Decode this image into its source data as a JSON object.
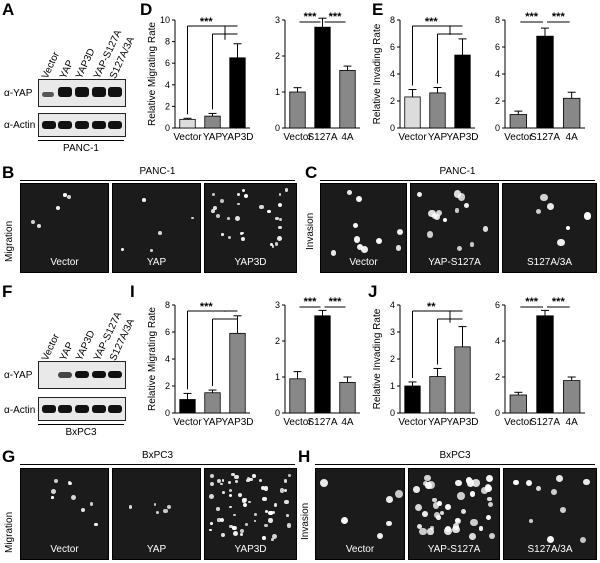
{
  "panels": {
    "A": {
      "letter": "A",
      "lanes": [
        "Vector",
        "YAP",
        "YAP3D",
        "YAP-S127A",
        "S127A/3A"
      ],
      "rows": [
        "α-YAP",
        "α-Actin"
      ],
      "cell": "PANC-1"
    },
    "F": {
      "letter": "F",
      "lanes": [
        "Vector",
        "YAP",
        "YAP3D",
        "YAP-S127A",
        "S127A/3A"
      ],
      "rows": [
        "α-YAP",
        "α-Actin"
      ],
      "cell": "BxPC3"
    },
    "B": {
      "letter": "B",
      "header": "PANC-1",
      "side": "Migration",
      "images": [
        "Vector",
        "YAP",
        "YAP3D"
      ]
    },
    "C": {
      "letter": "C",
      "header": "PANC-1",
      "side": "Invasion",
      "images": [
        "Vector",
        "YAP-S127A",
        "S127A/3A"
      ]
    },
    "G": {
      "letter": "G",
      "header": "BxPC3",
      "side": "Migration",
      "images": [
        "Vector",
        "YAP",
        "YAP3D"
      ]
    },
    "H": {
      "letter": "H",
      "header": "BxPC3",
      "side": "Invasion",
      "images": [
        "Vector",
        "YAP-S127A",
        "S127A/3A"
      ]
    },
    "D": {
      "letter": "D"
    },
    "E": {
      "letter": "E"
    },
    "I": {
      "letter": "I"
    },
    "J": {
      "letter": "J"
    }
  },
  "chart_data": [
    {
      "id": "D1",
      "type": "bar",
      "ylabel": "Relative Migrating Rate",
      "categories": [
        "Vector",
        "YAP",
        "YAP3D"
      ],
      "values": [
        0.8,
        1.1,
        6.5
      ],
      "errors": [
        0.1,
        0.25,
        1.3
      ],
      "colors": [
        "#dcdcdc",
        "#888888",
        "#000000"
      ],
      "ylim": [
        0,
        10
      ],
      "yticks": [
        0,
        2,
        4,
        6,
        8,
        10
      ],
      "sig": [
        "***"
      ]
    },
    {
      "id": "D2",
      "type": "bar",
      "ylabel": "",
      "categories": [
        "Vector",
        "S127A",
        "4A"
      ],
      "values": [
        1.0,
        2.8,
        1.6
      ],
      "errors": [
        0.12,
        0.25,
        0.12
      ],
      "colors": [
        "#888888",
        "#000000",
        "#888888"
      ],
      "ylim": [
        0,
        3
      ],
      "yticks": [
        0,
        1,
        2,
        3
      ],
      "sig": [
        "***",
        "***"
      ]
    },
    {
      "id": "E1",
      "type": "bar",
      "ylabel": "Relative Invading Rate",
      "categories": [
        "Vector",
        "YAP",
        "YAP3D"
      ],
      "values": [
        2.3,
        2.6,
        5.4
      ],
      "errors": [
        0.55,
        0.4,
        1.2
      ],
      "colors": [
        "#dcdcdc",
        "#888888",
        "#000000"
      ],
      "ylim": [
        0,
        8
      ],
      "yticks": [
        0,
        2,
        4,
        6,
        8
      ],
      "sig": [
        "***"
      ]
    },
    {
      "id": "E2",
      "type": "bar",
      "ylabel": "",
      "categories": [
        "Vector",
        "S127A",
        "4A"
      ],
      "values": [
        1.0,
        6.8,
        2.2
      ],
      "errors": [
        0.25,
        0.6,
        0.45
      ],
      "colors": [
        "#888888",
        "#000000",
        "#888888"
      ],
      "ylim": [
        0,
        8
      ],
      "yticks": [
        0,
        2,
        4,
        6,
        8
      ],
      "sig": [
        "***",
        "***"
      ]
    },
    {
      "id": "I1",
      "type": "bar",
      "ylabel": "Relative Migrating Rate",
      "categories": [
        "Vector",
        "YAP",
        "YAP3D"
      ],
      "values": [
        1.0,
        1.5,
        5.9
      ],
      "errors": [
        0.45,
        0.2,
        1.3
      ],
      "colors": [
        "#000000",
        "#888888",
        "#888888"
      ],
      "ylim": [
        0,
        8
      ],
      "yticks": [
        0,
        2,
        4,
        6,
        8
      ],
      "sig": [
        "***"
      ]
    },
    {
      "id": "I2",
      "type": "bar",
      "ylabel": "",
      "categories": [
        "Vector",
        "S127A",
        "4A"
      ],
      "values": [
        0.95,
        2.7,
        0.85
      ],
      "errors": [
        0.2,
        0.15,
        0.15
      ],
      "colors": [
        "#888888",
        "#000000",
        "#888888"
      ],
      "ylim": [
        0,
        3
      ],
      "yticks": [
        0,
        1,
        2,
        3
      ],
      "sig": [
        "***",
        "***"
      ]
    },
    {
      "id": "J1",
      "type": "bar",
      "ylabel": "Relative Invading Rate",
      "categories": [
        "Vector",
        "YAP",
        "YAP3D"
      ],
      "values": [
        1.0,
        1.35,
        2.45
      ],
      "errors": [
        0.15,
        0.3,
        0.75
      ],
      "colors": [
        "#000000",
        "#888888",
        "#888888"
      ],
      "ylim": [
        0,
        4
      ],
      "yticks": [
        0,
        1,
        2,
        3,
        4
      ],
      "sig": [
        "**"
      ]
    },
    {
      "id": "J2",
      "type": "bar",
      "ylabel": "",
      "categories": [
        "Vector",
        "S127A",
        "4A"
      ],
      "values": [
        1.0,
        5.4,
        1.8
      ],
      "errors": [
        0.15,
        0.3,
        0.2
      ],
      "colors": [
        "#888888",
        "#000000",
        "#888888"
      ],
      "ylim": [
        0,
        6
      ],
      "yticks": [
        0,
        2,
        4,
        6
      ],
      "sig": [
        "***",
        "***"
      ]
    }
  ]
}
